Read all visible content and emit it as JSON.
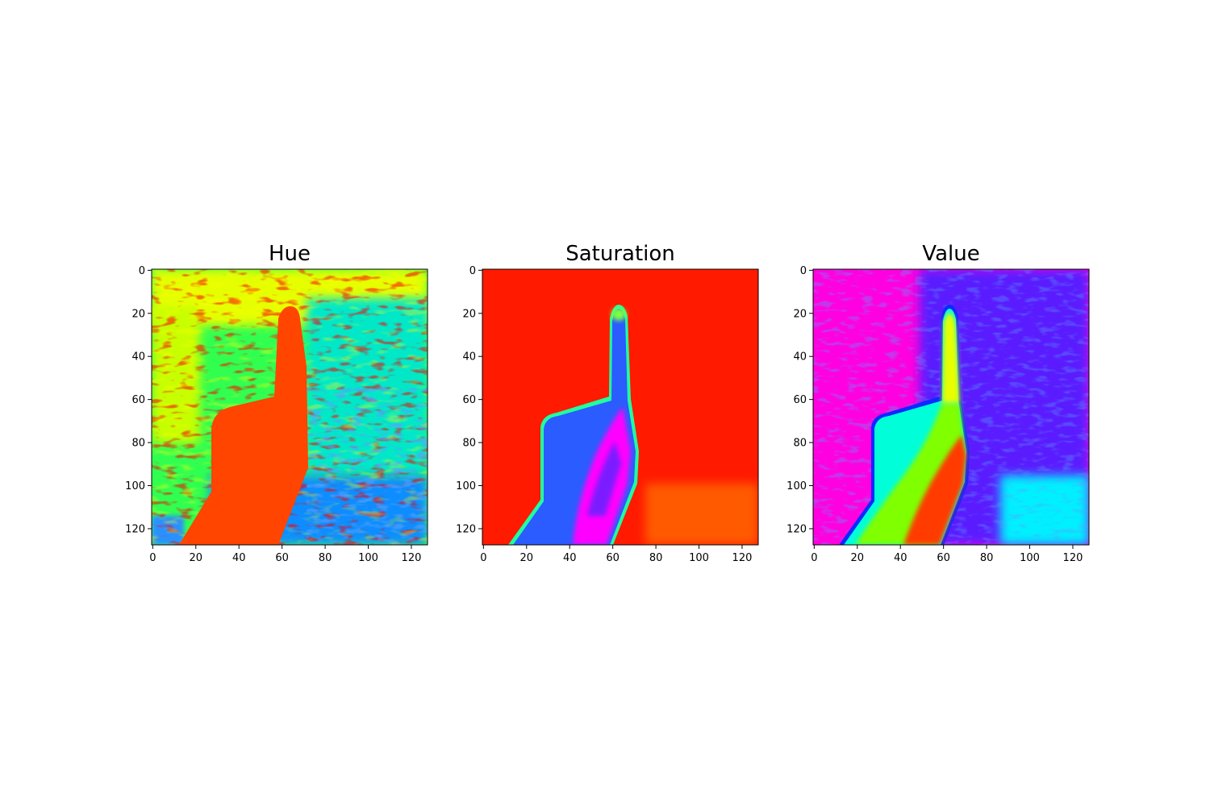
{
  "chart_data": [
    {
      "type": "heatmap",
      "title": "Hue",
      "colormap": "hsv",
      "content": "hsv-hue-channel-of-hand-pointing-up",
      "xlim": [
        0,
        127
      ],
      "ylim": [
        127,
        0
      ],
      "xticks": [
        0,
        20,
        40,
        60,
        80,
        100,
        120
      ],
      "yticks": [
        0,
        20,
        40,
        60,
        80,
        100,
        120
      ],
      "colors": {
        "hand": "#ff4500",
        "background_top": "#e6ff00",
        "background_mid": "#30ff50",
        "background_right": "#00c8ff",
        "background_bottom": "#0a8dff",
        "speckle": "#ff0000"
      }
    },
    {
      "type": "heatmap",
      "title": "Saturation",
      "colormap": "hsv",
      "content": "hsv-saturation-channel-of-hand-pointing-up",
      "xlim": [
        0,
        127
      ],
      "ylim": [
        127,
        0
      ],
      "xticks": [
        0,
        20,
        40,
        60,
        80,
        100,
        120
      ],
      "yticks": [
        0,
        20,
        40,
        60,
        80,
        100,
        120
      ],
      "colors": {
        "background": "#ff1a00",
        "background_bottom_right": "#ff5a00",
        "hand": "#2a5cff",
        "hand_outline": "#20ffa0",
        "finger_highlight": "#ff00ff",
        "fingertip": "#7dff40"
      }
    },
    {
      "type": "heatmap",
      "title": "Value",
      "colormap": "hsv",
      "content": "hsv-value-channel-of-hand-pointing-up",
      "xlim": [
        0,
        127
      ],
      "ylim": [
        127,
        0
      ],
      "xticks": [
        0,
        20,
        40,
        60,
        80,
        100,
        120
      ],
      "yticks": [
        0,
        20,
        40,
        60,
        80,
        100,
        120
      ],
      "colors": {
        "background_left": "#ff00e0",
        "background_right": "#5a1aff",
        "background_bottom_right": "#00f0ff",
        "hand_back": "#00ffd8",
        "hand_mid": "#80ff00",
        "hand_lit": "#ff3a00",
        "finger": "#e8ff00"
      }
    }
  ]
}
